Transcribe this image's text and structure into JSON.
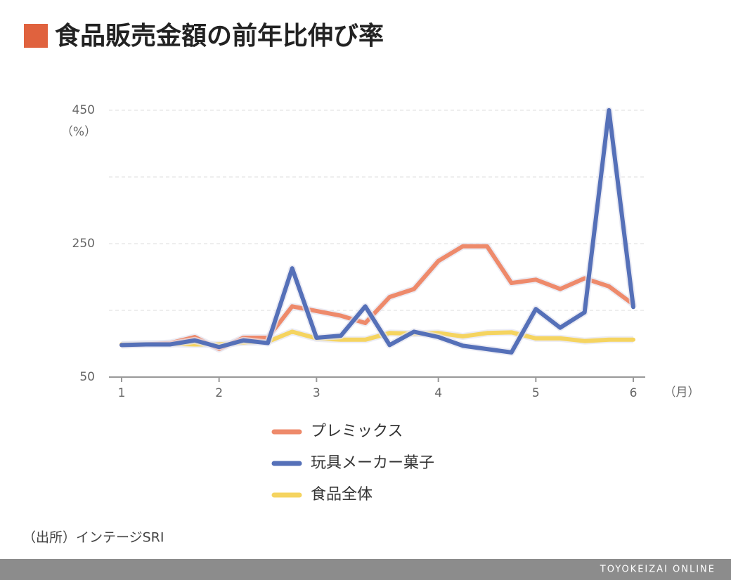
{
  "chart_data": {
    "type": "line",
    "title": "食品販売金額の前年比伸び率",
    "y_unit": "（%）",
    "x_unit": "（月）",
    "source": "（出所）インテージSRI",
    "footer": "TOYOKEIZAI ONLINE",
    "categories": [
      "1",
      null,
      null,
      null,
      "2",
      null,
      null,
      null,
      "3",
      null,
      null,
      null,
      null,
      "4",
      null,
      null,
      null,
      "5",
      null,
      null,
      null,
      "6"
    ],
    "series": [
      {
        "name": "プレミックス",
        "color": "#ee8a6b",
        "values": [
          98,
          99,
          101,
          110,
          92,
          109,
          109,
          156,
          149,
          142,
          131,
          170,
          182,
          224,
          246,
          246,
          191,
          196,
          182,
          198,
          186,
          159
        ]
      },
      {
        "name": "玩具メーカー菓子",
        "color": "#5570b8",
        "values": [
          98,
          99,
          99,
          105,
          95,
          105,
          101,
          213,
          109,
          112,
          156,
          98,
          118,
          110,
          97,
          92,
          87,
          152,
          124,
          147,
          450,
          155
        ]
      },
      {
        "name": "食品全体",
        "color": "#f5d460",
        "values": [
          99,
          100,
          100,
          99,
          99,
          102,
          103,
          118,
          108,
          106,
          106,
          116,
          115,
          116,
          111,
          116,
          117,
          108,
          108,
          104,
          106,
          106
        ]
      }
    ],
    "ylim": [
      50,
      450
    ],
    "yticks": [
      50,
      250,
      450
    ],
    "minor_yticks": [
      150,
      350
    ],
    "grid": true
  }
}
